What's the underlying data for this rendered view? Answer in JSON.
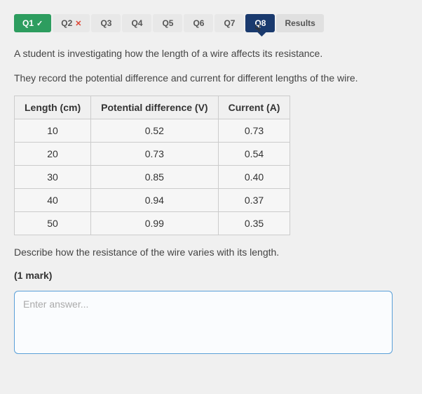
{
  "tabs": [
    {
      "label": "Q1",
      "state": "correct",
      "mark": "✓"
    },
    {
      "label": "Q2",
      "state": "wrong",
      "mark": "✕"
    },
    {
      "label": "Q3",
      "state": "",
      "mark": ""
    },
    {
      "label": "Q4",
      "state": "",
      "mark": ""
    },
    {
      "label": "Q5",
      "state": "",
      "mark": ""
    },
    {
      "label": "Q6",
      "state": "",
      "mark": ""
    },
    {
      "label": "Q7",
      "state": "",
      "mark": ""
    },
    {
      "label": "Q8",
      "state": "active",
      "mark": ""
    },
    {
      "label": "Results",
      "state": "results",
      "mark": ""
    }
  ],
  "question": {
    "p1": "A student is investigating how the length of a wire affects its resistance.",
    "p2": "They record the potential difference and current for different lengths of the wire.",
    "p3": "Describe how the resistance of the wire varies with its length.",
    "marks": "(1 mark)"
  },
  "table": {
    "headers": [
      "Length (cm)",
      "Potential difference (V)",
      "Current (A)"
    ],
    "rows": [
      [
        "10",
        "0.52",
        "0.73"
      ],
      [
        "20",
        "0.73",
        "0.54"
      ],
      [
        "30",
        "0.85",
        "0.40"
      ],
      [
        "40",
        "0.94",
        "0.37"
      ],
      [
        "50",
        "0.99",
        "0.35"
      ]
    ]
  },
  "answer": {
    "placeholder": "Enter answer..."
  },
  "colors": {
    "correct_bg": "#2d9d5f",
    "active_bg": "#1a3a6e",
    "wrong_mark": "#d43",
    "border_input": "#5aa0d8"
  }
}
